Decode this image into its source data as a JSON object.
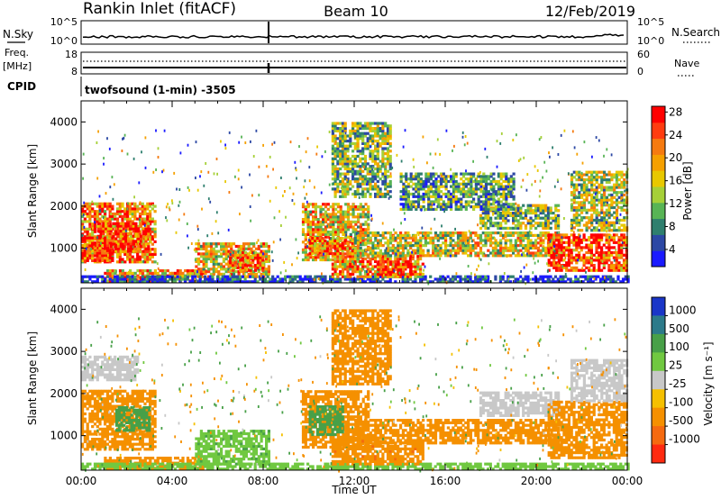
{
  "header": {
    "site": "Rankin Inlet (fitACF)",
    "beam": "Beam 10",
    "date": "12/Feb/2019"
  },
  "top_panels": {
    "nsky_label": "N.Sky",
    "nsky_ticks": [
      "10^5",
      "10^0"
    ],
    "nsearch_label": "N.Search",
    "nsearch_ticks": [
      "10^5",
      "10^0"
    ],
    "freq_label": "Freq.",
    "freq_unit": "[MHz]",
    "freq_ticks": [
      "18",
      "8"
    ],
    "nave_label": "Nave",
    "nave_ticks": [
      "60",
      "0"
    ],
    "cpid_label": "CPID",
    "cpid_text": "twofsound (1-min) -3505"
  },
  "chart_data": [
    {
      "type": "heatmap",
      "panel": "power",
      "xlabel": "",
      "ylabel": "Slant Range [km]",
      "x_range_hours": [
        0,
        24
      ],
      "x_ticks": [
        "00:00",
        "04:00",
        "08:00",
        "12:00",
        "16:00",
        "20:00",
        "00:00"
      ],
      "ylim": [
        180,
        4500
      ],
      "y_ticks": [
        1000,
        2000,
        3000,
        4000
      ],
      "colorbar_label": "Power [dB]",
      "colorbar_ticks": [
        "4",
        "8",
        "12",
        "16",
        "20",
        "24",
        "28"
      ],
      "colorbar_colors": [
        "#1a1aff",
        "#2c48a4",
        "#2f7f6e",
        "#58b455",
        "#a6d038",
        "#e8c800",
        "#f5a000",
        "#f57a10",
        "#ff3c10",
        "#ff0000"
      ],
      "echo_regions": [
        {
          "t0": 0.0,
          "t1": 3.2,
          "r0": 650,
          "r1": 2050,
          "value": 24
        },
        {
          "t0": 0.7,
          "t1": 3.0,
          "r0": 900,
          "r1": 1600,
          "value": 28
        },
        {
          "t0": 0.0,
          "t1": 1.4,
          "r0": 680,
          "r1": 1250,
          "value": 30
        },
        {
          "t0": 1.0,
          "t1": 5.5,
          "r0": 200,
          "r1": 500,
          "value": 22
        },
        {
          "t0": 1.8,
          "t1": 3.5,
          "r0": 220,
          "r1": 320,
          "value": 30
        },
        {
          "t0": 5.0,
          "t1": 8.2,
          "r0": 300,
          "r1": 1100,
          "value": 20
        },
        {
          "t0": 6.5,
          "t1": 8.0,
          "r0": 450,
          "r1": 900,
          "value": 26
        },
        {
          "t0": 0.0,
          "t1": 24.0,
          "r0": 180,
          "r1": 320,
          "value": 6
        },
        {
          "t0": 9.7,
          "t1": 12.6,
          "r0": 700,
          "r1": 2050,
          "value": 20
        },
        {
          "t0": 10.0,
          "t1": 12.0,
          "r0": 850,
          "r1": 1250,
          "value": 26
        },
        {
          "t0": 11.0,
          "t1": 15.0,
          "r0": 300,
          "r1": 900,
          "value": 22
        },
        {
          "t0": 13.0,
          "t1": 14.5,
          "r0": 350,
          "r1": 700,
          "value": 30
        },
        {
          "t0": 12.0,
          "t1": 21.0,
          "r0": 800,
          "r1": 1400,
          "value": 18
        },
        {
          "t0": 17.5,
          "t1": 21.0,
          "r0": 1450,
          "r1": 2000,
          "value": 14
        },
        {
          "t0": 20.5,
          "t1": 24.0,
          "r0": 450,
          "r1": 1350,
          "value": 28
        },
        {
          "t0": 21.5,
          "t1": 24.0,
          "r0": 1400,
          "r1": 2800,
          "value": 16
        },
        {
          "t0": 11.0,
          "t1": 13.6,
          "r0": 2200,
          "r1": 4000,
          "value": 14
        },
        {
          "t0": 14.0,
          "t1": 19.0,
          "r0": 1900,
          "r1": 2800,
          "value": 12
        }
      ]
    },
    {
      "type": "heatmap",
      "panel": "velocity",
      "xlabel": "Time UT",
      "ylabel": "Slant Range [km]",
      "x_range_hours": [
        0,
        24
      ],
      "x_ticks": [
        "00:00",
        "04:00",
        "08:00",
        "12:00",
        "16:00",
        "20:00",
        "00:00"
      ],
      "ylim": [
        180,
        4500
      ],
      "y_ticks": [
        1000,
        2000,
        3000,
        4000
      ],
      "colorbar_label": "Velocity [m s⁻¹]",
      "colorbar_ticks": [
        "1000",
        "500",
        "100",
        "25",
        "-25",
        "-100",
        "-500",
        "-1000"
      ],
      "colorbar_colors": [
        "#1a36c8",
        "#2c7a8a",
        "#48a048",
        "#70c840",
        "#c8c8c8",
        "#f5c000",
        "#f59000",
        "#f56a10",
        "#ff2a10"
      ],
      "echo_regions": [
        {
          "t0": 0.0,
          "t1": 3.2,
          "r0": 650,
          "r1": 2050,
          "value": -300
        },
        {
          "t0": 1.5,
          "t1": 3.0,
          "r0": 1100,
          "r1": 1700,
          "value": 150
        },
        {
          "t0": 1.0,
          "t1": 5.5,
          "r0": 200,
          "r1": 500,
          "value": -150
        },
        {
          "t0": 5.0,
          "t1": 8.2,
          "r0": 300,
          "r1": 1100,
          "value": 80
        },
        {
          "t0": 0.0,
          "t1": 24.0,
          "r0": 180,
          "r1": 320,
          "value": 40
        },
        {
          "t0": 9.7,
          "t1": 12.6,
          "r0": 700,
          "r1": 2050,
          "value": -200
        },
        {
          "t0": 10.0,
          "t1": 11.5,
          "r0": 1000,
          "r1": 1700,
          "value": 300
        },
        {
          "t0": 11.0,
          "t1": 15.0,
          "r0": 300,
          "r1": 900,
          "value": -400
        },
        {
          "t0": 12.0,
          "t1": 21.0,
          "r0": 800,
          "r1": 1400,
          "value": -300
        },
        {
          "t0": 17.5,
          "t1": 21.0,
          "r0": 1450,
          "r1": 2000,
          "value": 0
        },
        {
          "t0": 20.5,
          "t1": 24.0,
          "r0": 450,
          "r1": 1800,
          "value": -350
        },
        {
          "t0": 21.5,
          "t1": 24.0,
          "r0": 1800,
          "r1": 2800,
          "value": 0
        },
        {
          "t0": 0.0,
          "t1": 2.5,
          "r0": 2300,
          "r1": 2900,
          "value": 0
        },
        {
          "t0": 11.0,
          "t1": 13.6,
          "r0": 2200,
          "r1": 4000,
          "value": -200
        }
      ]
    }
  ]
}
